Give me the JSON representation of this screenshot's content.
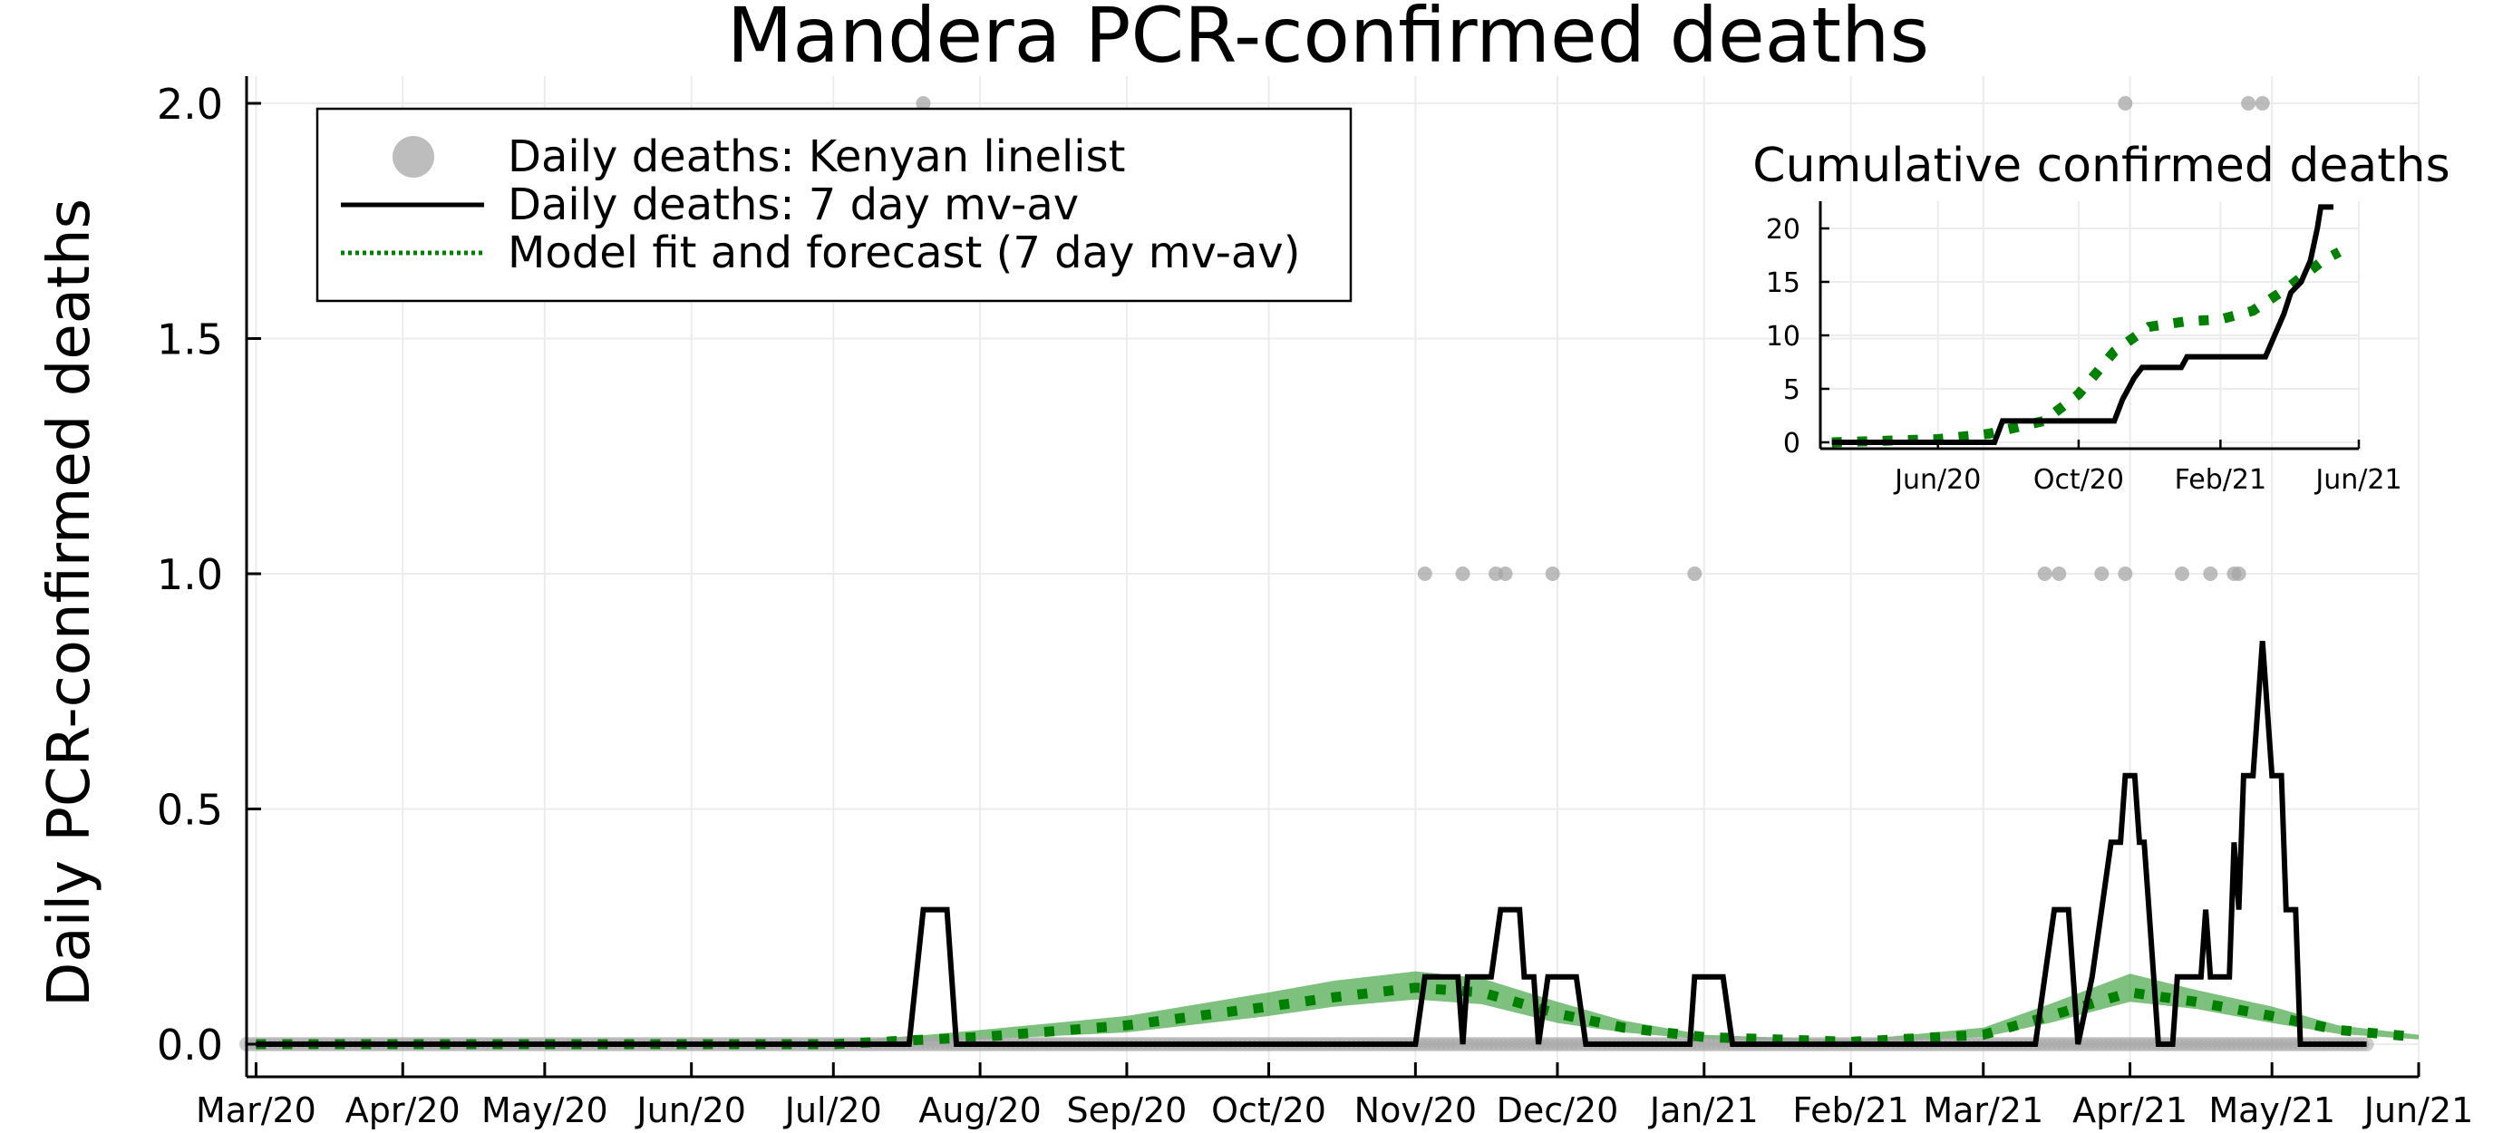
{
  "chart_data": [
    {
      "type": "line",
      "title": "Mandera PCR-confirmed deaths",
      "xlabel": "",
      "ylabel": "Daily PCR-confirmed deaths",
      "x_range": [
        "2020-02-28",
        "2021-06-01"
      ],
      "ylim": [
        0,
        2.0
      ],
      "yticks": [
        {
          "value": 0.0,
          "label": "0.0"
        },
        {
          "value": 0.5,
          "label": "0.5"
        },
        {
          "value": 1.0,
          "label": "1.0"
        },
        {
          "value": 1.5,
          "label": "1.5"
        },
        {
          "value": 2.0,
          "label": "2.0"
        }
      ],
      "xticks": [
        {
          "date": "2020-03-01",
          "label": "Mar/20"
        },
        {
          "date": "2020-04-01",
          "label": "Apr/20"
        },
        {
          "date": "2020-05-01",
          "label": "May/20"
        },
        {
          "date": "2020-06-01",
          "label": "Jun/20"
        },
        {
          "date": "2020-07-01",
          "label": "Jul/20"
        },
        {
          "date": "2020-08-01",
          "label": "Aug/20"
        },
        {
          "date": "2020-09-01",
          "label": "Sep/20"
        },
        {
          "date": "2020-10-01",
          "label": "Oct/20"
        },
        {
          "date": "2020-11-01",
          "label": "Nov/20"
        },
        {
          "date": "2020-12-01",
          "label": "Dec/20"
        },
        {
          "date": "2021-01-01",
          "label": "Jan/21"
        },
        {
          "date": "2021-02-01",
          "label": "Feb/21"
        },
        {
          "date": "2021-03-01",
          "label": "Mar/21"
        },
        {
          "date": "2021-04-01",
          "label": "Apr/21"
        },
        {
          "date": "2021-05-01",
          "label": "May/21"
        },
        {
          "date": "2021-06-01",
          "label": "Jun/21"
        }
      ],
      "grid": true,
      "legend_position": "top-left",
      "colors": {
        "linelist": "#a6a6a6",
        "mvav": "#000000",
        "model": "#008000",
        "band": "#2e9a2e"
      },
      "series": [
        {
          "name": "Daily deaths: Kenyan linelist",
          "kind": "scatter",
          "nonzero_points": [
            {
              "date": "2020-07-20",
              "y": 2
            },
            {
              "date": "2020-11-03",
              "y": 1
            },
            {
              "date": "2020-11-11",
              "y": 1
            },
            {
              "date": "2020-11-18",
              "y": 1
            },
            {
              "date": "2020-11-20",
              "y": 1
            },
            {
              "date": "2020-11-30",
              "y": 1
            },
            {
              "date": "2020-12-30",
              "y": 1
            },
            {
              "date": "2021-03-14",
              "y": 1
            },
            {
              "date": "2021-03-17",
              "y": 1
            },
            {
              "date": "2021-03-26",
              "y": 1
            },
            {
              "date": "2021-03-31",
              "y": 2
            },
            {
              "date": "2021-03-31",
              "y": 1
            },
            {
              "date": "2021-04-12",
              "y": 1
            },
            {
              "date": "2021-04-18",
              "y": 1
            },
            {
              "date": "2021-04-23",
              "y": 1
            },
            {
              "date": "2021-04-24",
              "y": 1
            },
            {
              "date": "2021-04-26",
              "y": 2
            },
            {
              "date": "2021-04-29",
              "y": 2
            }
          ],
          "zero_range": [
            "2020-02-28",
            "2021-05-21"
          ]
        },
        {
          "name": "Daily deaths: 7 day mv-av",
          "kind": "line",
          "points": [
            [
              "2020-03-01",
              0
            ],
            [
              "2020-07-17",
              0
            ],
            [
              "2020-07-20",
              0.286
            ],
            [
              "2020-07-25",
              0.286
            ],
            [
              "2020-07-27",
              0
            ],
            [
              "2020-11-01",
              0
            ],
            [
              "2020-11-03",
              0.143
            ],
            [
              "2020-11-10",
              0.143
            ],
            [
              "2020-11-11",
              0
            ],
            [
              "2020-11-12",
              0.143
            ],
            [
              "2020-11-17",
              0.143
            ],
            [
              "2020-11-19",
              0.286
            ],
            [
              "2020-11-23",
              0.286
            ],
            [
              "2020-11-24",
              0.143
            ],
            [
              "2020-11-26",
              0.143
            ],
            [
              "2020-11-27",
              0
            ],
            [
              "2020-11-29",
              0.143
            ],
            [
              "2020-12-05",
              0.143
            ],
            [
              "2020-12-07",
              0
            ],
            [
              "2020-12-29",
              0
            ],
            [
              "2020-12-30",
              0.143
            ],
            [
              "2021-01-05",
              0.143
            ],
            [
              "2021-01-07",
              0
            ],
            [
              "2021-03-12",
              0
            ],
            [
              "2021-03-14",
              0.143
            ],
            [
              "2021-03-16",
              0.286
            ],
            [
              "2021-03-19",
              0.286
            ],
            [
              "2021-03-21",
              0
            ],
            [
              "2021-03-24",
              0.143
            ],
            [
              "2021-03-26",
              0.286
            ],
            [
              "2021-03-28",
              0.429
            ],
            [
              "2021-03-30",
              0.429
            ],
            [
              "2021-03-31",
              0.571
            ],
            [
              "2021-04-02",
              0.571
            ],
            [
              "2021-04-03",
              0.429
            ],
            [
              "2021-04-04",
              0.429
            ],
            [
              "2021-04-05",
              0.286
            ],
            [
              "2021-04-06",
              0.143
            ],
            [
              "2021-04-07",
              0
            ],
            [
              "2021-04-10",
              0
            ],
            [
              "2021-04-11",
              0.143
            ],
            [
              "2021-04-16",
              0.143
            ],
            [
              "2021-04-17",
              0.286
            ],
            [
              "2021-04-18",
              0.143
            ],
            [
              "2021-04-22",
              0.143
            ],
            [
              "2021-04-23",
              0.429
            ],
            [
              "2021-04-24",
              0.286
            ],
            [
              "2021-04-25",
              0.571
            ],
            [
              "2021-04-27",
              0.571
            ],
            [
              "2021-04-29",
              0.857
            ],
            [
              "2021-05-01",
              0.571
            ],
            [
              "2021-05-03",
              0.571
            ],
            [
              "2021-05-04",
              0.286
            ],
            [
              "2021-05-06",
              0.286
            ],
            [
              "2021-05-07",
              0
            ],
            [
              "2021-05-21",
              0
            ]
          ]
        },
        {
          "name": "Model fit and forecast (7 day mv-av)",
          "kind": "dotted-line-with-band",
          "points": [
            [
              "2020-03-01",
              0
            ],
            [
              "2020-07-01",
              0
            ],
            [
              "2020-07-21",
              0.01
            ],
            [
              "2020-08-01",
              0.015
            ],
            [
              "2020-09-01",
              0.04
            ],
            [
              "2020-10-01",
              0.08
            ],
            [
              "2020-10-15",
              0.1
            ],
            [
              "2020-11-01",
              0.12
            ],
            [
              "2020-11-15",
              0.11
            ],
            [
              "2020-12-01",
              0.065
            ],
            [
              "2020-12-15",
              0.035
            ],
            [
              "2021-01-01",
              0.015
            ],
            [
              "2021-02-01",
              0.005
            ],
            [
              "2021-03-01",
              0.02
            ],
            [
              "2021-03-15",
              0.06
            ],
            [
              "2021-04-01",
              0.11
            ],
            [
              "2021-04-15",
              0.09
            ],
            [
              "2021-05-01",
              0.06
            ],
            [
              "2021-05-15",
              0.03
            ],
            [
              "2021-06-01",
              0.015
            ]
          ],
          "band": [
            [
              "2020-07-01",
              0,
              0.005
            ],
            [
              "2020-07-21",
              0.005,
              0.02
            ],
            [
              "2020-08-01",
              0.01,
              0.03
            ],
            [
              "2020-09-01",
              0.025,
              0.06
            ],
            [
              "2020-10-01",
              0.06,
              0.11
            ],
            [
              "2020-10-15",
              0.08,
              0.135
            ],
            [
              "2020-11-01",
              0.095,
              0.155
            ],
            [
              "2020-11-15",
              0.085,
              0.14
            ],
            [
              "2020-12-01",
              0.045,
              0.09
            ],
            [
              "2020-12-15",
              0.025,
              0.05
            ],
            [
              "2021-01-01",
              0.01,
              0.02
            ],
            [
              "2021-02-01",
              0.003,
              0.008
            ],
            [
              "2021-03-01",
              0.015,
              0.035
            ],
            [
              "2021-03-15",
              0.045,
              0.085
            ],
            [
              "2021-04-01",
              0.09,
              0.15
            ],
            [
              "2021-04-15",
              0.075,
              0.115
            ],
            [
              "2021-05-01",
              0.045,
              0.08
            ],
            [
              "2021-05-15",
              0.022,
              0.04
            ],
            [
              "2021-06-01",
              0.01,
              0.02
            ]
          ]
        }
      ]
    },
    {
      "type": "line",
      "title": "Cumulative confirmed deaths",
      "xlabel": "",
      "ylabel": "",
      "x_range": [
        "2020-02-20",
        "2021-06-01"
      ],
      "ylim": [
        0,
        22.5
      ],
      "yticks": [
        {
          "value": 0,
          "label": "0"
        },
        {
          "value": 5,
          "label": "5"
        },
        {
          "value": 10,
          "label": "10"
        },
        {
          "value": 15,
          "label": "15"
        },
        {
          "value": 20,
          "label": "20"
        }
      ],
      "xticks": [
        {
          "date": "2020-06-01",
          "label": "Jun/20"
        },
        {
          "date": "2020-10-01",
          "label": "Oct/20"
        },
        {
          "date": "2021-02-01",
          "label": "Feb/21"
        },
        {
          "date": "2021-06-01",
          "label": "Jun/21"
        }
      ],
      "grid": true,
      "series": [
        {
          "kind": "line",
          "points": [
            [
              "2020-03-01",
              0
            ],
            [
              "2020-07-20",
              0
            ],
            [
              "2020-07-27",
              2
            ],
            [
              "2020-11-01",
              2
            ],
            [
              "2020-11-08",
              4
            ],
            [
              "2020-11-18",
              6
            ],
            [
              "2020-11-25",
              7
            ],
            [
              "2020-12-29",
              7
            ],
            [
              "2021-01-03",
              8
            ],
            [
              "2021-03-12",
              8
            ],
            [
              "2021-03-20",
              10
            ],
            [
              "2021-03-28",
              12
            ],
            [
              "2021-04-03",
              14
            ],
            [
              "2021-04-12",
              15
            ],
            [
              "2021-04-20",
              17
            ],
            [
              "2021-04-26",
              20
            ],
            [
              "2021-04-29",
              22
            ],
            [
              "2021-05-10",
              22
            ]
          ]
        },
        {
          "kind": "dotted-line",
          "points": [
            [
              "2020-03-01",
              0
            ],
            [
              "2020-06-01",
              0.3
            ],
            [
              "2020-07-15",
              0.8
            ],
            [
              "2020-09-01",
              2
            ],
            [
              "2020-10-01",
              4.5
            ],
            [
              "2020-11-01",
              8.5
            ],
            [
              "2020-12-01",
              10.8
            ],
            [
              "2021-01-01",
              11.3
            ],
            [
              "2021-02-01",
              11.5
            ],
            [
              "2021-03-01",
              12.3
            ],
            [
              "2021-04-01",
              14.5
            ],
            [
              "2021-05-01",
              17
            ],
            [
              "2021-05-15",
              17.8
            ]
          ]
        }
      ]
    }
  ]
}
